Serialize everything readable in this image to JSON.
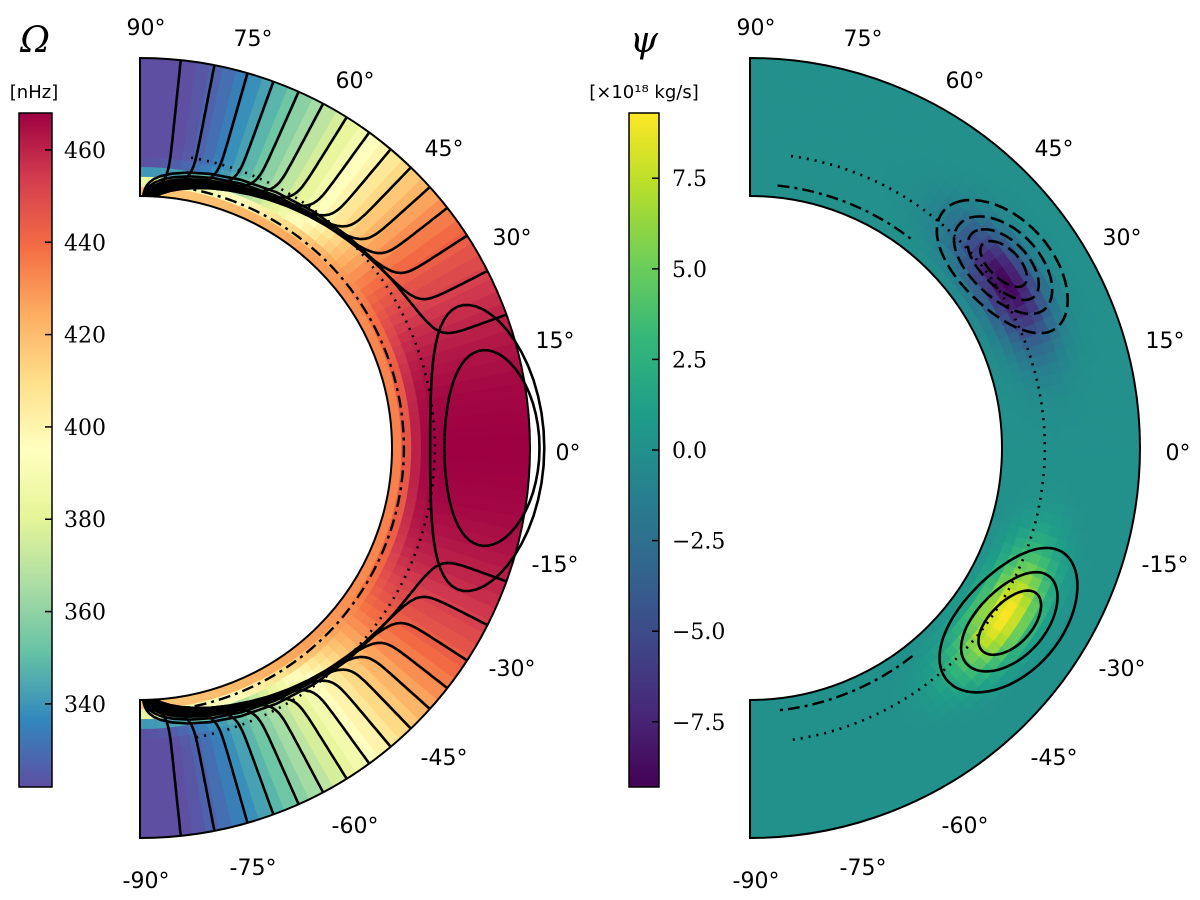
{
  "chart_data": [
    {
      "type": "heatmap",
      "panel": "left",
      "colorbar": {
        "symbol": "Ω",
        "unit": "[nHz]",
        "ticks": [
          340,
          360,
          380,
          400,
          420,
          440,
          460
        ],
        "range": [
          322,
          468
        ],
        "colormap": [
          "#5e4fa2",
          "#3288bd",
          "#66c2a5",
          "#abdda4",
          "#e6f598",
          "#ffffbf",
          "#fee08b",
          "#fdae61",
          "#f46d43",
          "#d53e4f",
          "#9e0142"
        ]
      },
      "angle_labels": [
        "90°",
        "75°",
        "60°",
        "45°",
        "30°",
        "15°",
        "0°",
        "-15°",
        "-30°",
        "-45°",
        "-60°",
        "-75°",
        "-90°"
      ],
      "radial_range": [
        0.71,
        1.0
      ],
      "value_description": {
        "equator_max_nHz": 468,
        "pole_min_nHz": 322
      }
    },
    {
      "type": "heatmap",
      "panel": "right",
      "colorbar": {
        "symbol": "ψ",
        "unit": "[×10¹⁸ kg/s]",
        "ticks": [
          "7.5",
          "5.0",
          "2.5",
          "0.0",
          "−2.5",
          "−5.0",
          "−7.5"
        ],
        "tick_values": [
          7.5,
          5.0,
          2.5,
          0.0,
          -2.5,
          -5.0,
          -7.5
        ],
        "range": [
          -9.3,
          9.3
        ],
        "colormap": [
          "#440154",
          "#482878",
          "#3e4989",
          "#31688e",
          "#26828e",
          "#1f9e89",
          "#35b779",
          "#6ece58",
          "#b5de2b",
          "#fde725"
        ]
      },
      "angle_labels": [
        "90°",
        "75°",
        "60°",
        "45°",
        "30°",
        "15°",
        "0°",
        "-15°",
        "-30°",
        "-45°",
        "-60°",
        "-75°",
        "-90°"
      ],
      "radial_range": [
        0.71,
        1.0
      ],
      "value_description": {
        "northern_cell_min": -9.0,
        "southern_cell_max": 9.2
      }
    }
  ]
}
